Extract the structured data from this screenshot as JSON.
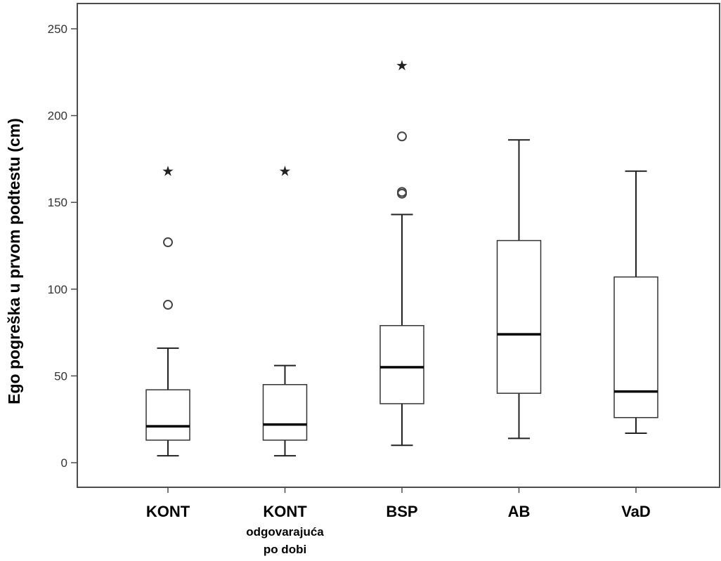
{
  "chart_data": {
    "type": "boxplot",
    "title": "",
    "xlabel": "",
    "ylabel": "Ego pogreška u prvom podtestu (cm)",
    "ylim": [
      -15,
      263
    ],
    "yticks": [
      0,
      50,
      100,
      150,
      200,
      250
    ],
    "grid": false,
    "categories": [
      {
        "label": "KONT",
        "sublabel": [
          "",
          ""
        ]
      },
      {
        "label": "KONT",
        "sublabel": [
          "odgovarajuća",
          "po dobi"
        ]
      },
      {
        "label": "BSP",
        "sublabel": [
          "",
          ""
        ]
      },
      {
        "label": "AB",
        "sublabel": [
          "",
          ""
        ]
      },
      {
        "label": "VaD",
        "sublabel": [
          "",
          ""
        ]
      }
    ],
    "boxes": [
      {
        "whisker_low": 4,
        "q1": 13,
        "median": 21,
        "q3": 42,
        "whisker_high": 66,
        "outliers": [
          {
            "value": 91,
            "marker": "circle"
          },
          {
            "value": 127,
            "marker": "circle"
          }
        ],
        "extremes": [
          {
            "value": 168,
            "marker": "star"
          }
        ]
      },
      {
        "whisker_low": 4,
        "q1": 13,
        "median": 22,
        "q3": 45,
        "whisker_high": 56,
        "outliers": [],
        "extremes": [
          {
            "value": 168,
            "marker": "star"
          }
        ]
      },
      {
        "whisker_low": 10,
        "q1": 34,
        "median": 55,
        "q3": 79,
        "whisker_high": 143,
        "outliers": [
          {
            "value": 155,
            "marker": "circle"
          },
          {
            "value": 156,
            "marker": "circle"
          },
          {
            "value": 188,
            "marker": "circle"
          }
        ],
        "extremes": [
          {
            "value": 229,
            "marker": "star"
          }
        ]
      },
      {
        "whisker_low": 14,
        "q1": 40,
        "median": 74,
        "q3": 128,
        "whisker_high": 186,
        "outliers": [],
        "extremes": []
      },
      {
        "whisker_low": 17,
        "q1": 26,
        "median": 41,
        "q3": 107,
        "whisker_high": 168,
        "outliers": [],
        "extremes": []
      }
    ],
    "colors": {
      "box_fill": "#ffffff",
      "stroke": "#333333",
      "axis": "#4d4d4d"
    }
  }
}
